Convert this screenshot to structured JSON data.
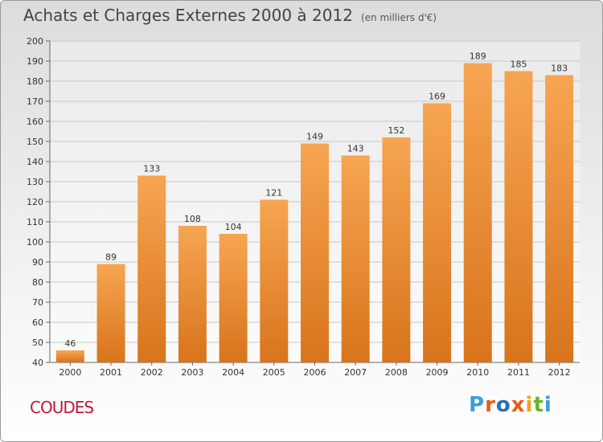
{
  "header": {
    "title": "Achats et Charges Externes 2000 à 2012",
    "subtitle": "(en milliers d'€)"
  },
  "footer": {
    "commune": "COUDES",
    "logo": [
      "P",
      "r",
      "o",
      "x",
      "i",
      "t",
      "i"
    ]
  },
  "colors": {
    "bar_top": "#f7a552",
    "bar_bottom": "#d8741c",
    "commune_text": "#c4183c"
  },
  "chart_data": {
    "type": "bar",
    "title": "Achats et Charges Externes 2000 à 2012",
    "subtitle": "(en milliers d'€)",
    "xlabel": "",
    "ylabel": "",
    "categories": [
      "2000",
      "2001",
      "2002",
      "2003",
      "2004",
      "2005",
      "2006",
      "2007",
      "2008",
      "2009",
      "2010",
      "2011",
      "2012"
    ],
    "values": [
      46,
      89,
      133,
      108,
      104,
      121,
      149,
      143,
      152,
      169,
      189,
      185,
      183
    ],
    "ylim": [
      40,
      200
    ],
    "yticks": [
      40,
      50,
      60,
      70,
      80,
      90,
      100,
      110,
      120,
      130,
      140,
      150,
      160,
      170,
      180,
      190,
      200
    ],
    "grid": true,
    "data_labels": true
  }
}
